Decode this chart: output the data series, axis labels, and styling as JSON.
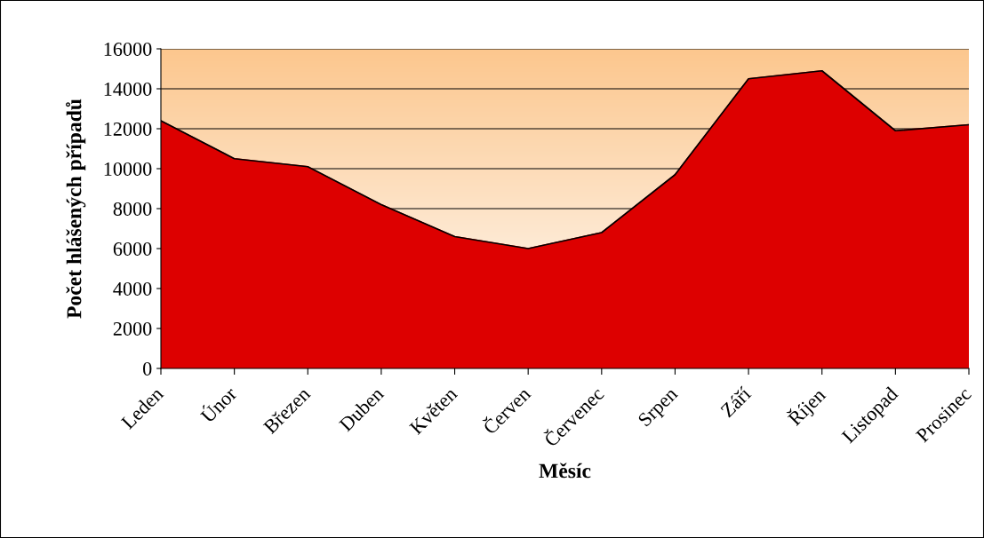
{
  "chart_data": {
    "type": "area",
    "xlabel": "Měsíc",
    "ylabel": "Počet hlášených případů",
    "categories": [
      "Leden",
      "Únor",
      "Březen",
      "Duben",
      "Květen",
      "Červen",
      "Červenec",
      "Srpen",
      "Září",
      "Říjen",
      "Listopad",
      "Prosinec"
    ],
    "series": [
      {
        "color": "#dd0000",
        "values": [
          12400,
          10500,
          10100,
          8200,
          6600,
          6000,
          6800,
          9700,
          14500,
          14900,
          11900,
          12200
        ]
      }
    ],
    "ylim": [
      0,
      16000
    ],
    "yticks": [
      0,
      2000,
      4000,
      6000,
      8000,
      10000,
      12000,
      14000,
      16000
    ],
    "grid": "y",
    "legend": false
  }
}
